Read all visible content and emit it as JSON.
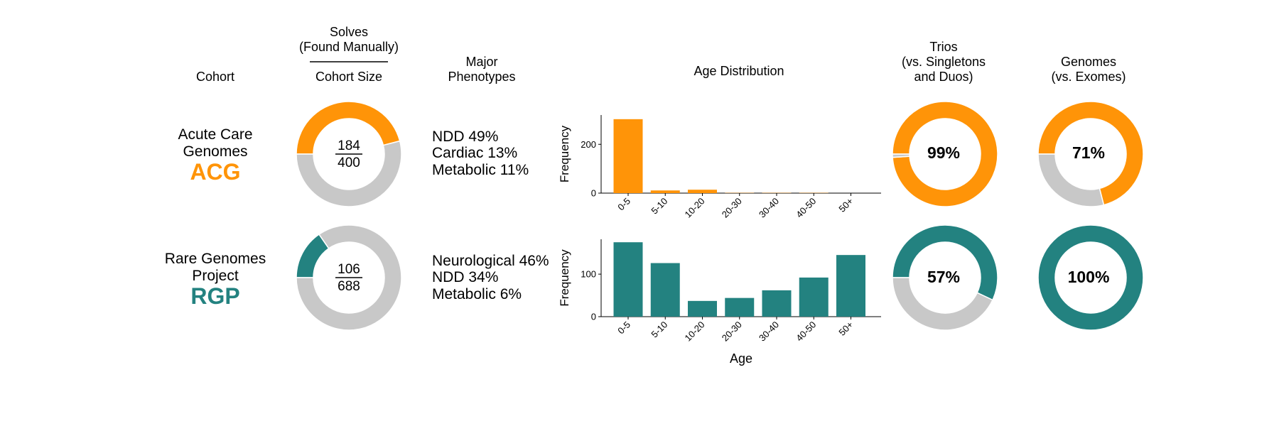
{
  "headers": {
    "cohort": "Cohort",
    "solves_line1": "Solves",
    "solves_line2": "(Found Manually)",
    "cohort_size": "Cohort Size",
    "phen_line1": "Major",
    "phen_line2": "Phenotypes",
    "age_dist": "Age Distribution",
    "trios_line1": "Trios",
    "trios_line2": "(vs. Singletons",
    "trios_line3": "and Duos)",
    "genomes_line1": "Genomes",
    "genomes_line2": "(vs. Exomes)"
  },
  "colors": {
    "acg": "#FF9408",
    "rgp": "#238280",
    "grey": "#C8C8C8"
  },
  "cohorts": [
    {
      "name_line1": "Acute Care",
      "name_line2": "Genomes",
      "abbr": "ACG",
      "solves": "184",
      "size": "400",
      "phenotypes": [
        "NDD 49%",
        "Cardiac 13%",
        "Metabolic 11%"
      ],
      "trios_label": "99%",
      "genomes_label": "71%"
    },
    {
      "name_line1": "Rare Genomes",
      "name_line2": "Project",
      "abbr": "RGP",
      "solves": "106",
      "size": "688",
      "phenotypes": [
        "Neurological 46%",
        "NDD 34%",
        "Metabolic 6%"
      ],
      "trios_label": "57%",
      "genomes_label": "100%"
    }
  ],
  "chart_data": [
    {
      "type": "pie",
      "name": "ACG solves",
      "values": [
        184,
        216
      ]
    },
    {
      "type": "pie",
      "name": "RGP solves",
      "values": [
        106,
        582
      ]
    },
    {
      "type": "bar",
      "title": "Age Distribution",
      "categories": [
        "0-5",
        "5-10",
        "10-20",
        "20-30",
        "30-40",
        "40-50",
        "50+"
      ],
      "values": [
        303,
        11,
        14,
        1,
        1,
        1,
        0
      ],
      "ylabel": "Frequency",
      "xlabel": "",
      "yticks": [
        0,
        200
      ],
      "ylim": [
        0,
        320
      ]
    },
    {
      "type": "bar",
      "categories": [
        "0-5",
        "5-10",
        "10-20",
        "20-30",
        "30-40",
        "40-50",
        "50+"
      ],
      "values": [
        175,
        126,
        37,
        44,
        62,
        92,
        145
      ],
      "ylabel": "Frequency",
      "xlabel": "Age",
      "yticks": [
        0,
        100
      ],
      "ylim": [
        0,
        182
      ]
    },
    {
      "type": "pie",
      "name": "ACG trios",
      "values": [
        99,
        1
      ]
    },
    {
      "type": "pie",
      "name": "RGP trios",
      "values": [
        57,
        43
      ]
    },
    {
      "type": "pie",
      "name": "ACG genomes",
      "values": [
        71,
        29
      ]
    },
    {
      "type": "pie",
      "name": "RGP genomes",
      "values": [
        100,
        0
      ]
    }
  ]
}
